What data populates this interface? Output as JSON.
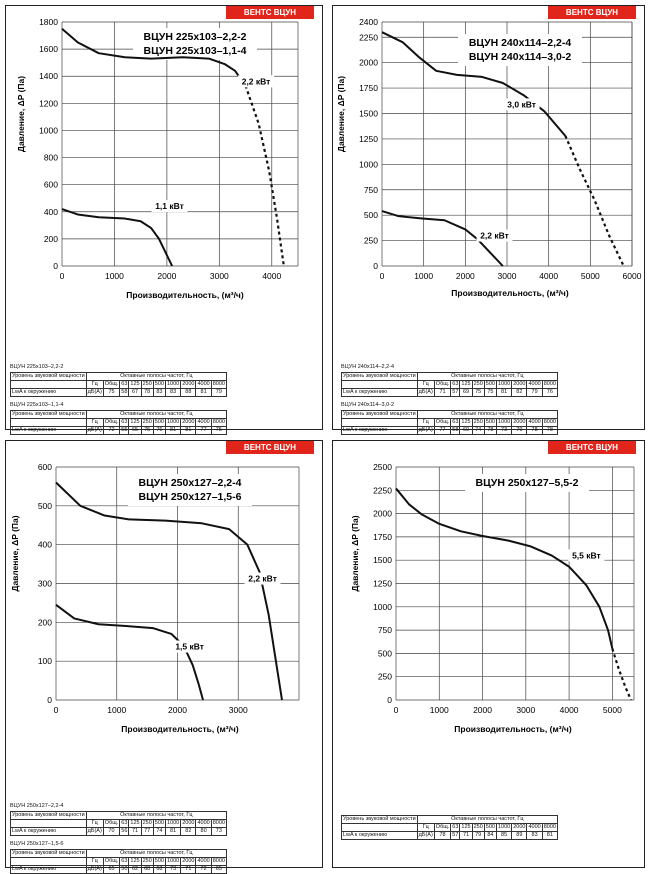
{
  "brand_label": "ВЕНТС ВЦУН",
  "chart_data": [
    {
      "type": "line",
      "title_lines": [
        "ВЦУН 225x103–2,2-2",
        "ВЦУН 225x103–1,1-4"
      ],
      "xlabel": "Производительность, (м³/ч)",
      "ylabel": "Давление, ΔP (Па)",
      "xlim": [
        0,
        4500
      ],
      "ylim": [
        0,
        1800
      ],
      "xticks": [
        0,
        1000,
        2000,
        3000,
        4000
      ],
      "yticks": [
        0,
        200,
        400,
        600,
        800,
        1000,
        1200,
        1400,
        1600,
        1800
      ],
      "grid": true,
      "series": [
        {
          "name": "2,2 кВт",
          "x": [
            0,
            300,
            700,
            1200,
            1700,
            2300,
            2800,
            3100,
            3300,
            3500
          ],
          "y": [
            1750,
            1650,
            1570,
            1540,
            1530,
            1540,
            1530,
            1490,
            1440,
            1330
          ],
          "dashed_x": [
            3500,
            3750,
            3950,
            4100,
            4200,
            4230
          ],
          "dashed_y": [
            1330,
            1050,
            700,
            350,
            80,
            0
          ],
          "label_at": [
            3700,
            1340
          ]
        },
        {
          "name": "1,1 кВт",
          "x": [
            0,
            300,
            700,
            1200,
            1500,
            1700,
            1850,
            2000,
            2100
          ],
          "y": [
            420,
            380,
            360,
            350,
            330,
            280,
            200,
            80,
            0
          ],
          "label_at": [
            2050,
            420
          ]
        }
      ]
    },
    {
      "type": "line",
      "title_lines": [
        "ВЦУН 240x114–2,2-4",
        "ВЦУН 240x114–3,0-2"
      ],
      "xlabel": "Производительность, (м³/ч)",
      "ylabel": "Давление, ΔP (Па)",
      "xlim": [
        0,
        6000
      ],
      "ylim": [
        0,
        2400
      ],
      "xticks": [
        0,
        1000,
        2000,
        3000,
        4000,
        5000,
        6000
      ],
      "yticks": [
        0,
        250,
        500,
        750,
        1000,
        1250,
        1500,
        1750,
        2000,
        2250,
        2400
      ],
      "grid": true,
      "series": [
        {
          "name": "3,0 кВт",
          "x": [
            0,
            500,
            900,
            1300,
            1800,
            2400,
            2900,
            3400,
            3900,
            4400
          ],
          "y": [
            2300,
            2200,
            2050,
            1920,
            1880,
            1860,
            1800,
            1680,
            1520,
            1280
          ],
          "dashed_x": [
            4400,
            4750,
            5100,
            5450,
            5800
          ],
          "dashed_y": [
            1280,
            950,
            650,
            300,
            0
          ],
          "label_at": [
            3350,
            1560
          ]
        },
        {
          "name": "2,2 кВт",
          "x": [
            0,
            400,
            900,
            1500,
            2000,
            2300,
            2600,
            2900
          ],
          "y": [
            540,
            490,
            470,
            450,
            360,
            260,
            130,
            0
          ],
          "label_at": [
            2700,
            270
          ]
        }
      ]
    },
    {
      "type": "line",
      "title_lines": [
        "ВЦУН 250x127–2,2-4",
        "ВЦУН 250x127–1,5-6"
      ],
      "xlabel": "Производительность, (м³/ч)",
      "ylabel": "Давление, ΔP (Па)",
      "xlim": [
        0,
        4000
      ],
      "ylim": [
        0,
        600
      ],
      "xticks": [
        0,
        1000,
        2000,
        3000
      ],
      "yticks": [
        0,
        100,
        200,
        300,
        400,
        500,
        600
      ],
      "grid": true,
      "series": [
        {
          "name": "2,2 кВт",
          "x": [
            0,
            400,
            800,
            1200,
            1800,
            2400,
            2850,
            3150,
            3350,
            3500,
            3620,
            3720
          ],
          "y": [
            560,
            500,
            475,
            465,
            462,
            455,
            440,
            400,
            330,
            220,
            100,
            0
          ],
          "label_at": [
            3400,
            305
          ]
        },
        {
          "name": "1,5 кВт",
          "x": [
            0,
            300,
            700,
            1200,
            1600,
            1900,
            2100,
            2250,
            2350,
            2420
          ],
          "y": [
            245,
            210,
            195,
            190,
            185,
            170,
            140,
            90,
            40,
            0
          ],
          "label_at": [
            2200,
            130
          ]
        }
      ]
    },
    {
      "type": "line",
      "title_lines": [
        "ВЦУН 250x127–5,5-2"
      ],
      "xlabel": "Производительность, (м³/ч)",
      "ylabel": "Давление, ΔP (Па)",
      "xlim": [
        0,
        5500
      ],
      "ylim": [
        0,
        2500
      ],
      "xticks": [
        0,
        1000,
        2000,
        3000,
        4000,
        5000
      ],
      "yticks": [
        0,
        250,
        500,
        750,
        1000,
        1250,
        1500,
        1750,
        2000,
        2250,
        2500
      ],
      "grid": true,
      "series": [
        {
          "name": "5,5 кВт",
          "x": [
            0,
            300,
            600,
            1000,
            1500,
            2000,
            2600,
            3100,
            3600,
            4000,
            4400,
            4700,
            4900,
            5000
          ],
          "y": [
            2270,
            2100,
            1990,
            1890,
            1810,
            1760,
            1710,
            1650,
            1550,
            1430,
            1230,
            1000,
            750,
            550
          ],
          "dashed_x": [
            5000,
            5150,
            5300,
            5430
          ],
          "dashed_y": [
            550,
            330,
            140,
            0
          ],
          "label_at": [
            4400,
            1520
          ]
        }
      ]
    }
  ],
  "sound_tables": [
    {
      "captions": [
        "ВЦУН 225x103–2,2-2",
        "ВЦУН 225x103–1,1-4"
      ],
      "header_left": "Уровень звуковой мощности",
      "header_right": "Октавные полосы частот, Гц",
      "cols": [
        "Гц",
        "Общ.",
        "63",
        "125",
        "250",
        "500",
        "1000",
        "2000",
        "4000",
        "8000"
      ],
      "rows": [
        [
          "LwA к окружению",
          "дБ(А)",
          "75",
          "58",
          "67",
          "78",
          "83",
          "83",
          "88",
          "81",
          "79"
        ],
        [
          "LwA к окружению",
          "дБ(А)",
          "72",
          "55",
          "65",
          "75",
          "76",
          "81",
          "81",
          "77",
          "75"
        ]
      ]
    },
    {
      "captions": [
        "ВЦУН 240x114–2,2-4",
        "ВЦУН 240x114–3,0-2"
      ],
      "header_left": "Уровень звуковой мощности",
      "header_right": "Октавные полосы частот, Гц",
      "cols": [
        "Гц",
        "Общ.",
        "63",
        "125",
        "250",
        "500",
        "1000",
        "2000",
        "4000",
        "8000"
      ],
      "rows": [
        [
          "LwA к окружению",
          "дБ(А)",
          "71",
          "57",
          "69",
          "75",
          "75",
          "81",
          "82",
          "79",
          "76"
        ],
        [
          "LwA к окружению",
          "дБ(А)",
          "77",
          "58",
          "69",
          "74",
          "78",
          "73",
          "79",
          "78",
          "78"
        ]
      ]
    },
    {
      "captions": [
        "ВЦУН 250x127–2,2-4",
        "ВЦУН 250x127–1,5-6"
      ],
      "header_left": "Уровень звуковой мощности",
      "header_right": "Октавные полосы частот, Гц",
      "cols": [
        "Гц",
        "Общ.",
        "63",
        "125",
        "250",
        "500",
        "1000",
        "2000",
        "4000",
        "8000"
      ],
      "rows": [
        [
          "LwA к окружению",
          "дБ(А)",
          "70",
          "56",
          "71",
          "77",
          "74",
          "81",
          "82",
          "80",
          "73"
        ],
        [
          "LwA к окружению",
          "дБ(А)",
          "65",
          "50",
          "62",
          "68",
          "68",
          "73",
          "71",
          "72",
          "65"
        ]
      ]
    },
    {
      "captions": [
        "Уровень звуковой мощности"
      ],
      "header_left": "Уровень звуковой мощности",
      "header_right": "Октавные полосы частот, Гц",
      "cols": [
        "Гц",
        "Общ.",
        "63",
        "125",
        "250",
        "500",
        "1000",
        "2000",
        "4000",
        "8000"
      ],
      "rows": [
        [
          "LwA к окружению",
          "дБ(А)",
          "78",
          "57",
          "71",
          "79",
          "84",
          "85",
          "89",
          "83",
          "81"
        ]
      ]
    }
  ]
}
